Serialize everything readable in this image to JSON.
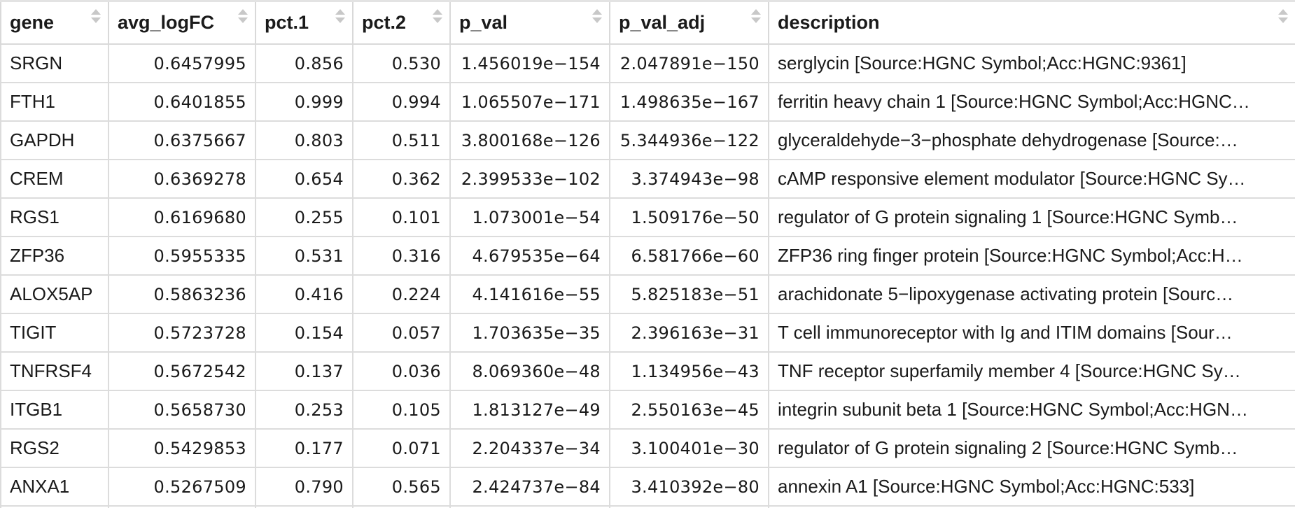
{
  "table": {
    "columns": [
      {
        "key": "gene",
        "label": "gene",
        "align": "left"
      },
      {
        "key": "avg_logFC",
        "label": "avg_logFC",
        "align": "right"
      },
      {
        "key": "pct_1",
        "label": "pct.1",
        "align": "right"
      },
      {
        "key": "pct_2",
        "label": "pct.2",
        "align": "right"
      },
      {
        "key": "p_val",
        "label": "p_val",
        "align": "right"
      },
      {
        "key": "p_val_adj",
        "label": "p_val_adj",
        "align": "right"
      },
      {
        "key": "description",
        "label": "description",
        "align": "left"
      }
    ],
    "sort_icon": "sort-arrows-icon",
    "rows": [
      {
        "gene": "SRGN",
        "avg_logFC": "0.6457995",
        "pct_1": "0.856",
        "pct_2": "0.530",
        "p_val": "1.456019e−154",
        "p_val_adj": "2.047891e−150",
        "description": "serglycin [Source:HGNC Symbol;Acc:HGNC:9361]"
      },
      {
        "gene": "FTH1",
        "avg_logFC": "0.6401855",
        "pct_1": "0.999",
        "pct_2": "0.994",
        "p_val": "1.065507e−171",
        "p_val_adj": "1.498635e−167",
        "description": "ferritin heavy chain 1 [Source:HGNC Symbol;Acc:HGNC…"
      },
      {
        "gene": "GAPDH",
        "avg_logFC": "0.6375667",
        "pct_1": "0.803",
        "pct_2": "0.511",
        "p_val": "3.800168e−126",
        "p_val_adj": "5.344936e−122",
        "description": "glyceraldehyde−3−phosphate dehydrogenase [Source:…"
      },
      {
        "gene": "CREM",
        "avg_logFC": "0.6369278",
        "pct_1": "0.654",
        "pct_2": "0.362",
        "p_val": "2.399533e−102",
        "p_val_adj": "3.374943e−98",
        "description": "cAMP responsive element modulator [Source:HGNC Sy…"
      },
      {
        "gene": "RGS1",
        "avg_logFC": "0.6169680",
        "pct_1": "0.255",
        "pct_2": "0.101",
        "p_val": "1.073001e−54",
        "p_val_adj": "1.509176e−50",
        "description": "regulator of G protein signaling 1 [Source:HGNC Symb…"
      },
      {
        "gene": "ZFP36",
        "avg_logFC": "0.5955335",
        "pct_1": "0.531",
        "pct_2": "0.316",
        "p_val": "4.679535e−64",
        "p_val_adj": "6.581766e−60",
        "description": "ZFP36 ring finger protein [Source:HGNC Symbol;Acc:H…"
      },
      {
        "gene": "ALOX5AP",
        "avg_logFC": "0.5863236",
        "pct_1": "0.416",
        "pct_2": "0.224",
        "p_val": "4.141616e−55",
        "p_val_adj": "5.825183e−51",
        "description": "arachidonate 5−lipoxygenase activating protein [Sourc…"
      },
      {
        "gene": "TIGIT",
        "avg_logFC": "0.5723728",
        "pct_1": "0.154",
        "pct_2": "0.057",
        "p_val": "1.703635e−35",
        "p_val_adj": "2.396163e−31",
        "description": "T cell immunoreceptor with Ig and ITIM domains [Sour…"
      },
      {
        "gene": "TNFRSF4",
        "avg_logFC": "0.5672542",
        "pct_1": "0.137",
        "pct_2": "0.036",
        "p_val": "8.069360e−48",
        "p_val_adj": "1.134956e−43",
        "description": "TNF receptor superfamily member 4 [Source:HGNC Sy…"
      },
      {
        "gene": "ITGB1",
        "avg_logFC": "0.5658730",
        "pct_1": "0.253",
        "pct_2": "0.105",
        "p_val": "1.813127e−49",
        "p_val_adj": "2.550163e−45",
        "description": "integrin subunit beta 1 [Source:HGNC Symbol;Acc:HGN…"
      },
      {
        "gene": "RGS2",
        "avg_logFC": "0.5429853",
        "pct_1": "0.177",
        "pct_2": "0.071",
        "p_val": "2.204337e−34",
        "p_val_adj": "3.100401e−30",
        "description": "regulator of G protein signaling 2 [Source:HGNC Symb…"
      },
      {
        "gene": "ANXA1",
        "avg_logFC": "0.5267509",
        "pct_1": "0.790",
        "pct_2": "0.565",
        "p_val": "2.424737e−84",
        "p_val_adj": "3.410392e−80",
        "description": "annexin A1 [Source:HGNC Symbol;Acc:HGNC:533]"
      }
    ]
  }
}
